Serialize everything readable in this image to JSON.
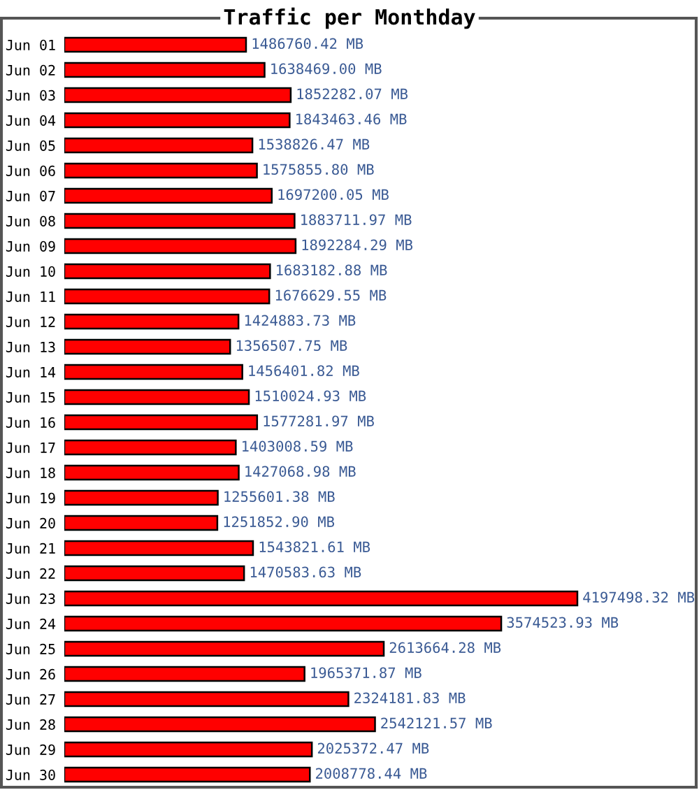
{
  "chart_data": {
    "type": "bar",
    "orientation": "horizontal",
    "title": "Traffic per Monthday",
    "categories": [
      "Jun 01",
      "Jun 02",
      "Jun 03",
      "Jun 04",
      "Jun 05",
      "Jun 06",
      "Jun 07",
      "Jun 08",
      "Jun 09",
      "Jun 10",
      "Jun 11",
      "Jun 12",
      "Jun 13",
      "Jun 14",
      "Jun 15",
      "Jun 16",
      "Jun 17",
      "Jun 18",
      "Jun 19",
      "Jun 20",
      "Jun 21",
      "Jun 22",
      "Jun 23",
      "Jun 24",
      "Jun 25",
      "Jun 26",
      "Jun 27",
      "Jun 28",
      "Jun 29",
      "Jun 30"
    ],
    "values": [
      1486760.42,
      1638469.0,
      1852282.07,
      1843463.46,
      1538826.47,
      1575855.8,
      1697200.05,
      1883711.97,
      1892284.29,
      1683182.88,
      1676629.55,
      1424883.73,
      1356507.75,
      1456401.82,
      1510024.93,
      1577281.97,
      1403008.59,
      1427068.98,
      1255601.38,
      1251852.9,
      1543821.61,
      1470583.63,
      4197498.32,
      3574523.93,
      2613664.28,
      1965371.87,
      2324181.83,
      2542121.57,
      2025372.47,
      2008778.44
    ],
    "value_labels": [
      "1486760.42 MB",
      "1638469.00 MB",
      "1852282.07 MB",
      "1843463.46 MB",
      "1538826.47 MB",
      "1575855.80 MB",
      "1697200.05 MB",
      "1883711.97 MB",
      "1892284.29 MB",
      "1683182.88 MB",
      "1676629.55 MB",
      "1424883.73 MB",
      "1356507.75 MB",
      "1456401.82 MB",
      "1510024.93 MB",
      "1577281.97 MB",
      "1403008.59 MB",
      "1427068.98 MB",
      "1255601.38 MB",
      "1251852.90 MB",
      "1543821.61 MB",
      "1470583.63 MB",
      "4197498.32 MB",
      "3574523.93 MB",
      "2613664.28 MB",
      "1965371.87 MB",
      "2324181.83 MB",
      "2542121.57 MB",
      "2025372.47 MB",
      "2008778.44 MB"
    ],
    "color": "#ff0000",
    "tick_labels": "y",
    "grid": false,
    "legend": false
  }
}
